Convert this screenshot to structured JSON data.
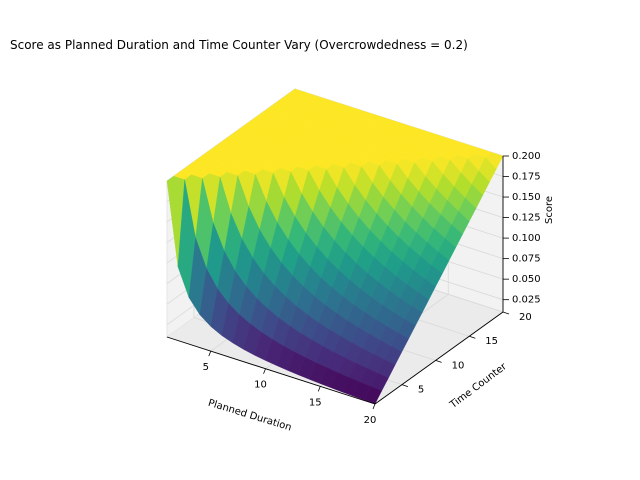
{
  "chart_data": {
    "type": "surface",
    "title": "Score as Planned Duration and Time Counter Vary (Overcrowdedness = 0.2)",
    "xlabel": "Planned Duration",
    "ylabel": "Time Counter",
    "zlabel": "Score",
    "xlim": [
      1,
      20
    ],
    "ylim": [
      1,
      20
    ],
    "zlim": [
      0.01,
      0.2
    ],
    "xticks": [
      5,
      10,
      15,
      20
    ],
    "yticks": [
      5,
      10,
      15,
      20
    ],
    "zticks": [
      "0.025",
      "0.050",
      "0.075",
      "0.100",
      "0.125",
      "0.150",
      "0.175",
      "0.200"
    ],
    "grid": true,
    "colormap": "viridis",
    "colormap_stops": [
      "#440154",
      "#482878",
      "#3e4989",
      "#31688e",
      "#26828e",
      "#1f9e89",
      "#35b779",
      "#6ece58",
      "#b5de2b",
      "#fde725"
    ],
    "overcrowdedness": 0.2,
    "x_values": [
      1,
      2,
      3,
      4,
      5,
      6,
      7,
      8,
      9,
      10,
      11,
      12,
      13,
      14,
      15,
      16,
      17,
      18,
      19,
      20
    ],
    "y_values": [
      1,
      2,
      3,
      4,
      5,
      6,
      7,
      8,
      9,
      10,
      11,
      12,
      13,
      14,
      15,
      16,
      17,
      18,
      19,
      20
    ],
    "z_formula": "score = 0.2 * min(1, time_counter / planned_duration)"
  }
}
